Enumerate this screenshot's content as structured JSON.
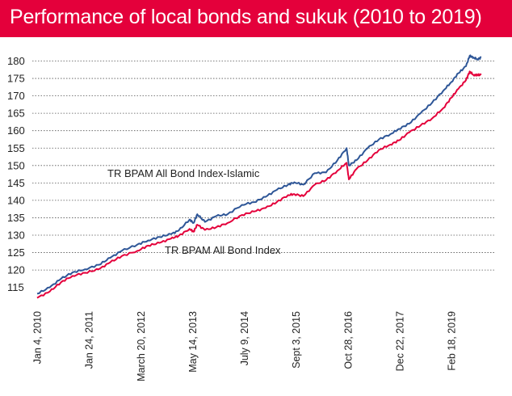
{
  "header": {
    "title": "Performance of local bonds and sukuk (2010 to 2019)"
  },
  "chart_data": {
    "type": "line",
    "title": "Performance of local bonds and sukuk (2010 to 2019)",
    "xlabel": "",
    "ylabel": "",
    "x_tick_labels": [
      "Jan 4, 2010",
      "Jan 24, 2011",
      "March 20, 2012",
      "May 14, 2013",
      "July 9, 2014",
      "Sept 3, 2015",
      "Oct 28, 2016",
      "Dec 22, 2017",
      "Feb 18, 2019"
    ],
    "y_tick_labels": [
      "115",
      "120",
      "125",
      "130",
      "135",
      "140",
      "145",
      "150",
      "155",
      "160",
      "165",
      "170",
      "175",
      "180"
    ],
    "ylim": [
      112,
      182
    ],
    "grid": "horizontal dotted at 120-180",
    "legend": "direct labels on series",
    "x": [
      "2010-01-04",
      "2010-04",
      "2010-07",
      "2010-10",
      "2011-01-24",
      "2011-05",
      "2011-08",
      "2011-11",
      "2012-03-20",
      "2012-06",
      "2012-09",
      "2012-12",
      "2013-02",
      "2013-05-14",
      "2013-06",
      "2013-07",
      "2013-09",
      "2013-12",
      "2014-03",
      "2014-07-09",
      "2014-10",
      "2015-01",
      "2015-04",
      "2015-07",
      "2015-09-03",
      "2015-11",
      "2016-02",
      "2016-05",
      "2016-08",
      "2016-10-28",
      "2016-11",
      "2017-01",
      "2017-04",
      "2017-07",
      "2017-10",
      "2017-12-22",
      "2018-03",
      "2018-06",
      "2018-09",
      "2018-12",
      "2019-02-18",
      "2019-04",
      "2019-06",
      "2019-07",
      "2019-08",
      "2019-09",
      "2019-10"
    ],
    "series": [
      {
        "name": "TR BPAM All Bond Index-Islamic",
        "color": "#2e5697",
        "values": [
          113.2,
          115,
          117.5,
          119.3,
          120.2,
          121.5,
          123.5,
          125.5,
          127.3,
          128.5,
          129.5,
          130.3,
          131.3,
          134.5,
          133.5,
          136.0,
          133.8,
          135.5,
          136.0,
          138.7,
          139.5,
          141.0,
          143.0,
          144.5,
          145.2,
          144.5,
          147.8,
          148.0,
          151.5,
          155.0,
          150.0,
          151.5,
          155.0,
          157.5,
          159.0,
          160.5,
          162.0,
          165.0,
          168.0,
          171.5,
          174.0,
          176.5,
          178.5,
          181.5,
          181.0,
          180.5,
          181.0
        ]
      },
      {
        "name": "TR BPAM All Bond Index",
        "color": "#e4003b",
        "values": [
          112.0,
          113.8,
          116.5,
          118.3,
          119.2,
          120.2,
          122.2,
          124.0,
          125.5,
          127.0,
          127.8,
          129.0,
          129.8,
          131.8,
          131.0,
          133.0,
          131.5,
          132.3,
          133.5,
          135.8,
          136.8,
          137.8,
          139.5,
          141.5,
          141.8,
          141.2,
          144.5,
          145.8,
          148.5,
          150.8,
          146.0,
          149.0,
          151.5,
          154.5,
          156.0,
          157.2,
          159.5,
          161.5,
          163.5,
          166.5,
          169.5,
          172.0,
          174.5,
          177.0,
          176.0,
          176.0,
          176.0
        ]
      }
    ],
    "annotations": [
      "TR BPAM All Bond Index-Islamic",
      "TR BPAM All Bond Index"
    ]
  }
}
